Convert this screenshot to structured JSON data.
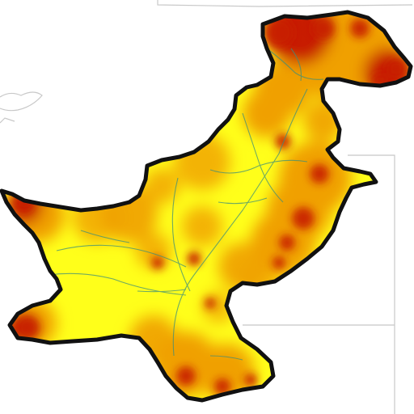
{
  "map": {
    "region_shape": "Pakistan",
    "colors": {
      "background": "#ffffff",
      "low": "#ffff1a",
      "mid": "#f0a000",
      "high": "#c81e00",
      "outline": "#111111",
      "rivers": "#3f8f7a",
      "neighbor_border": "#c8c8c8"
    },
    "legend": null
  }
}
